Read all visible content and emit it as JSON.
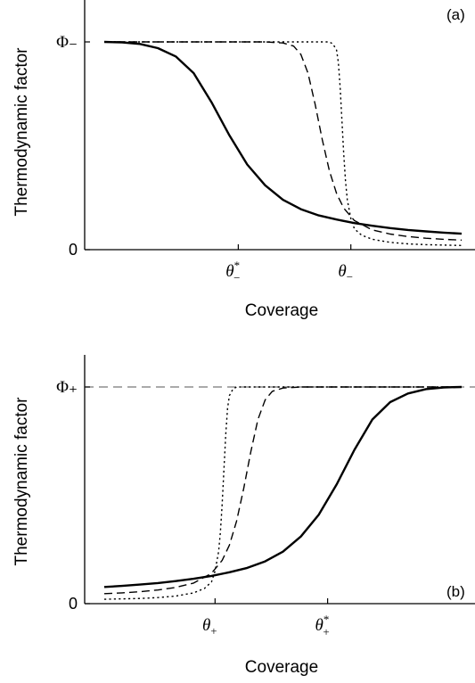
{
  "chart_data": [
    {
      "type": "line",
      "panel_label": "(a)",
      "xlabel": "Coverage",
      "ylabel": "Thermodynamic factor",
      "xlim": [
        0,
        1
      ],
      "ylim": [
        0,
        1.1
      ],
      "y_ticks": [
        {
          "value": 0,
          "text": "0"
        },
        {
          "value": 1,
          "text": "Φ₋"
        }
      ],
      "x_ticks": [
        {
          "value": 0.375,
          "symbol": "θ",
          "sup": "*",
          "sub": "−"
        },
        {
          "value": 0.69,
          "symbol": "θ",
          "sup": "",
          "sub": "−"
        }
      ],
      "series": [
        {
          "style": "solid",
          "x": [
            0,
            0.05,
            0.1,
            0.15,
            0.2,
            0.25,
            0.3,
            0.35,
            0.4,
            0.45,
            0.5,
            0.55,
            0.6,
            0.65,
            0.7,
            0.75,
            0.8,
            0.85,
            0.9,
            0.95,
            1.0
          ],
          "y": [
            1.0,
            0.998,
            0.99,
            0.97,
            0.93,
            0.85,
            0.71,
            0.55,
            0.41,
            0.31,
            0.24,
            0.195,
            0.165,
            0.145,
            0.128,
            0.115,
            0.104,
            0.095,
            0.088,
            0.082,
            0.077
          ]
        },
        {
          "style": "dashed",
          "x": [
            0,
            0.1,
            0.2,
            0.3,
            0.4,
            0.45,
            0.5,
            0.53,
            0.55,
            0.57,
            0.59,
            0.61,
            0.63,
            0.65,
            0.67,
            0.7,
            0.75,
            0.8,
            0.85,
            0.9,
            0.95,
            1.0
          ],
          "y": [
            1.0,
            1.0,
            1.0,
            1.0,
            1.0,
            1.0,
            0.995,
            0.98,
            0.94,
            0.85,
            0.7,
            0.53,
            0.38,
            0.27,
            0.2,
            0.14,
            0.095,
            0.075,
            0.063,
            0.055,
            0.05,
            0.046
          ]
        },
        {
          "style": "dotted",
          "x": [
            0,
            0.2,
            0.4,
            0.6,
            0.63,
            0.64,
            0.65,
            0.655,
            0.66,
            0.665,
            0.67,
            0.675,
            0.68,
            0.69,
            0.7,
            0.72,
            0.75,
            0.8,
            0.85,
            0.9,
            1.0
          ],
          "y": [
            1.0,
            1.0,
            1.0,
            1.0,
            1.0,
            0.99,
            0.96,
            0.9,
            0.78,
            0.62,
            0.46,
            0.33,
            0.24,
            0.15,
            0.1,
            0.07,
            0.05,
            0.035,
            0.028,
            0.024,
            0.02
          ]
        }
      ]
    },
    {
      "type": "line",
      "panel_label": "(b)",
      "xlabel": "Coverage",
      "ylabel": "Thermodynamic factor",
      "xlim": [
        0,
        1
      ],
      "ylim": [
        0,
        1.1
      ],
      "reference_line": {
        "y": 1,
        "style": "dashed"
      },
      "y_ticks": [
        {
          "value": 0,
          "text": "0"
        },
        {
          "value": 1,
          "text": "Φ₊"
        }
      ],
      "x_ticks": [
        {
          "value": 0.31,
          "symbol": "θ",
          "sup": "",
          "sub": "+"
        },
        {
          "value": 0.625,
          "symbol": "θ",
          "sup": "*",
          "sub": "+"
        }
      ],
      "series": [
        {
          "style": "solid",
          "x": [
            0,
            0.05,
            0.1,
            0.15,
            0.2,
            0.25,
            0.3,
            0.35,
            0.4,
            0.45,
            0.5,
            0.55,
            0.6,
            0.65,
            0.7,
            0.75,
            0.8,
            0.85,
            0.9,
            0.95,
            1.0
          ],
          "y": [
            0.077,
            0.082,
            0.088,
            0.095,
            0.104,
            0.115,
            0.128,
            0.145,
            0.165,
            0.195,
            0.24,
            0.31,
            0.41,
            0.55,
            0.71,
            0.85,
            0.93,
            0.97,
            0.99,
            0.998,
            1.0
          ]
        },
        {
          "style": "dashed",
          "x": [
            0,
            0.05,
            0.1,
            0.15,
            0.2,
            0.25,
            0.3,
            0.33,
            0.35,
            0.37,
            0.39,
            0.41,
            0.43,
            0.45,
            0.47,
            0.5,
            0.55,
            0.6,
            0.7,
            0.85,
            1.0
          ],
          "y": [
            0.046,
            0.05,
            0.055,
            0.063,
            0.075,
            0.095,
            0.14,
            0.2,
            0.27,
            0.38,
            0.53,
            0.7,
            0.85,
            0.94,
            0.98,
            0.995,
            1.0,
            1.0,
            1.0,
            1.0,
            1.0
          ]
        },
        {
          "style": "dotted",
          "x": [
            0,
            0.1,
            0.15,
            0.2,
            0.25,
            0.28,
            0.3,
            0.31,
            0.32,
            0.325,
            0.33,
            0.335,
            0.34,
            0.345,
            0.35,
            0.36,
            0.37,
            0.4,
            0.6,
            0.8,
            1.0
          ],
          "y": [
            0.02,
            0.024,
            0.028,
            0.035,
            0.05,
            0.07,
            0.1,
            0.15,
            0.24,
            0.33,
            0.46,
            0.62,
            0.78,
            0.9,
            0.96,
            0.99,
            1.0,
            1.0,
            1.0,
            1.0,
            1.0
          ]
        }
      ]
    }
  ]
}
